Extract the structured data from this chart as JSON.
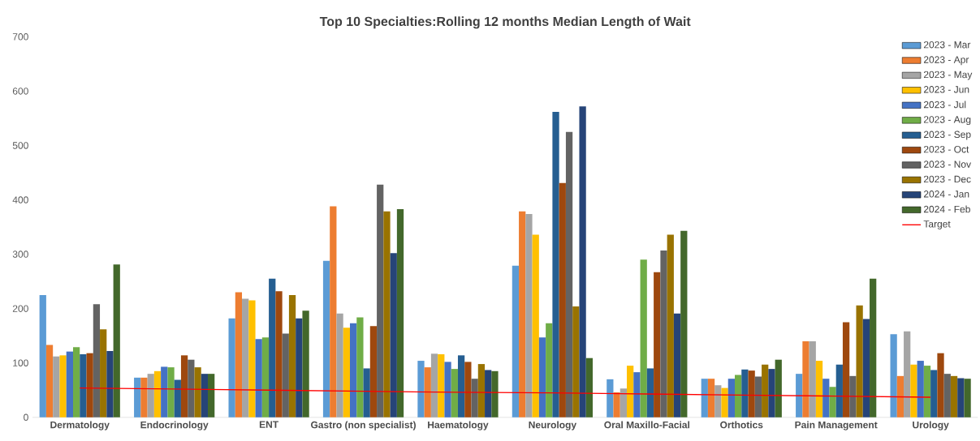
{
  "chart_data": {
    "type": "bar",
    "title": "Top 10 Specialties:Rolling 12 months Median Length of Wait",
    "categories": [
      "Dermatology",
      "Endocrinology",
      "ENT",
      "Gastro  (non specialist)",
      "Haematology",
      "Neurology",
      "Oral Maxillo-Facial",
      "Orthotics",
      "Pain Management",
      "Urology"
    ],
    "series": [
      {
        "name": "2023 - Mar",
        "color": "#5b9bd5",
        "values": [
          225,
          73,
          182,
          288,
          104,
          279,
          70,
          71,
          80,
          153
        ]
      },
      {
        "name": "2023 - Apr",
        "color": "#ed7d31",
        "values": [
          133,
          73,
          230,
          388,
          92,
          379,
          46,
          71,
          140,
          76
        ]
      },
      {
        "name": "2023 - May",
        "color": "#a5a5a5",
        "values": [
          112,
          80,
          218,
          191,
          117,
          374,
          53,
          59,
          140,
          158
        ]
      },
      {
        "name": "2023 - Jun",
        "color": "#ffc000",
        "values": [
          114,
          85,
          215,
          165,
          116,
          336,
          95,
          54,
          104,
          97
        ]
      },
      {
        "name": "2023 - Jul",
        "color": "#4472c4",
        "values": [
          121,
          93,
          144,
          173,
          102,
          147,
          83,
          71,
          71,
          104
        ]
      },
      {
        "name": "2023 - Aug",
        "color": "#70ad47",
        "values": [
          129,
          92,
          147,
          184,
          89,
          173,
          290,
          78,
          56,
          95
        ]
      },
      {
        "name": "2023 - Sep",
        "color": "#255e91",
        "values": [
          116,
          69,
          255,
          90,
          114,
          562,
          90,
          88,
          97,
          87
        ]
      },
      {
        "name": "2023 - Oct",
        "color": "#9e480e",
        "values": [
          118,
          114,
          232,
          168,
          102,
          431,
          267,
          86,
          175,
          118
        ]
      },
      {
        "name": "2023 - Nov",
        "color": "#636363",
        "values": [
          208,
          106,
          154,
          428,
          71,
          525,
          307,
          75,
          76,
          80
        ]
      },
      {
        "name": "2023 - Dec",
        "color": "#997300",
        "values": [
          162,
          92,
          225,
          379,
          98,
          204,
          336,
          97,
          206,
          76
        ]
      },
      {
        "name": "2024 - Jan",
        "color": "#264478",
        "values": [
          122,
          80,
          182,
          302,
          87,
          572,
          191,
          89,
          181,
          72
        ]
      },
      {
        "name": "2024 - Feb",
        "color": "#43682b",
        "values": [
          281,
          80,
          196,
          383,
          85,
          109,
          343,
          106,
          255,
          71
        ]
      },
      {
        "name": "Target",
        "type": "line",
        "color": "#ff0000",
        "values": [
          54,
          52,
          50,
          48,
          46,
          45,
          43,
          41,
          39,
          37
        ]
      }
    ],
    "ylim": [
      0,
      700
    ],
    "yticks": [
      0,
      100,
      200,
      300,
      400,
      500,
      600,
      700
    ],
    "legend": "top right"
  }
}
